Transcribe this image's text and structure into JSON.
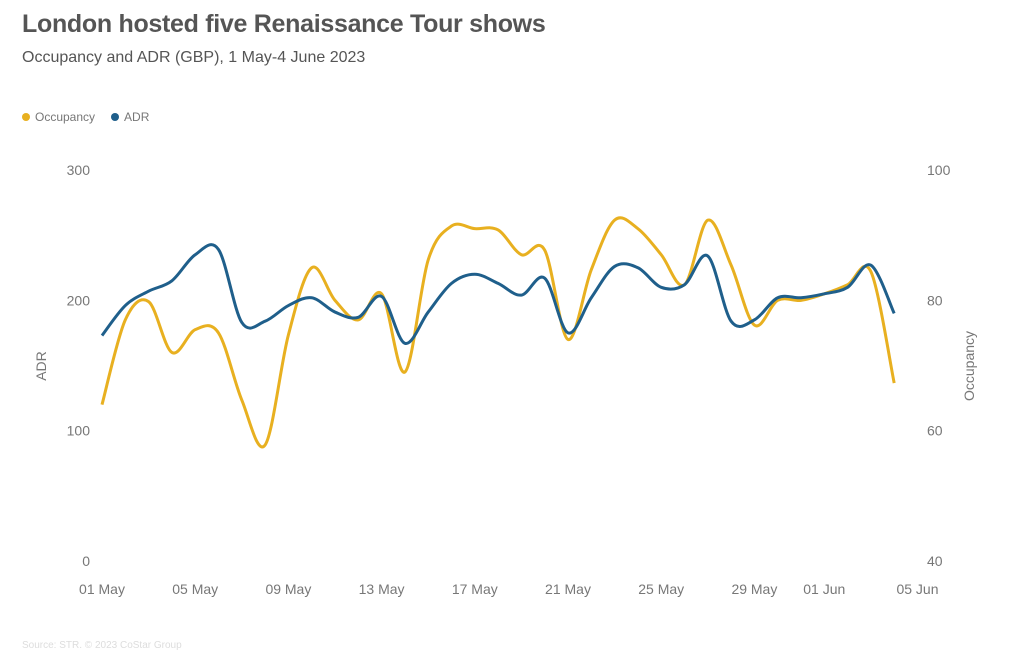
{
  "title": "London hosted five Renaissance Tour shows",
  "subtitle": "Occupancy and ADR (GBP), 1 May-4 June 2023",
  "source": "Source: STR. © 2023 CoStar Group",
  "colors": {
    "occupancy": "#E8B020",
    "adr": "#1F5F8B"
  },
  "chart_data": {
    "type": "line",
    "title": "London hosted five Renaissance Tour shows",
    "x_start": "2023-05-01",
    "x_end": "2023-06-04",
    "x_tick_labels": [
      "01 May",
      "05 May",
      "09 May",
      "13 May",
      "17 May",
      "21 May",
      "25 May",
      "29 May",
      "01 Jun",
      "05 Jun"
    ],
    "x_tick_days": [
      0,
      4,
      8,
      12,
      16,
      20,
      24,
      28,
      31,
      35
    ],
    "ylabel_left": "ADR",
    "ylabel_right": "Occupancy",
    "ylim_left": [
      0,
      300
    ],
    "ylim_right": [
      40,
      100
    ],
    "y_ticks_left": [
      0,
      100,
      200,
      300
    ],
    "y_ticks_right": [
      40,
      60,
      80,
      100
    ],
    "legend": "top-left",
    "grid": false,
    "series": [
      {
        "name": "Occupancy",
        "axis": "right",
        "color": "#E8B020",
        "values": [
          64,
          77,
          79.8,
          72,
          75.5,
          75,
          64.7,
          57.8,
          74.7,
          85,
          80,
          77,
          81,
          69,
          86.2,
          91.4,
          91,
          90.8,
          87,
          87.7,
          74,
          84.7,
          92.3,
          91,
          87,
          82.4,
          92.3,
          85.4,
          76.2,
          80,
          80,
          81,
          82.4,
          84.4,
          67.3
        ]
      },
      {
        "name": "ADR",
        "axis": "left",
        "color": "#1F5F8B",
        "values": [
          173,
          196,
          207,
          215,
          235,
          239,
          183,
          184,
          196,
          202,
          191,
          187,
          203,
          167,
          191,
          213,
          220,
          213,
          204,
          217,
          175,
          202,
          226,
          225,
          210,
          212,
          234,
          184,
          185,
          202,
          202,
          205,
          210,
          227,
          190
        ]
      }
    ]
  }
}
